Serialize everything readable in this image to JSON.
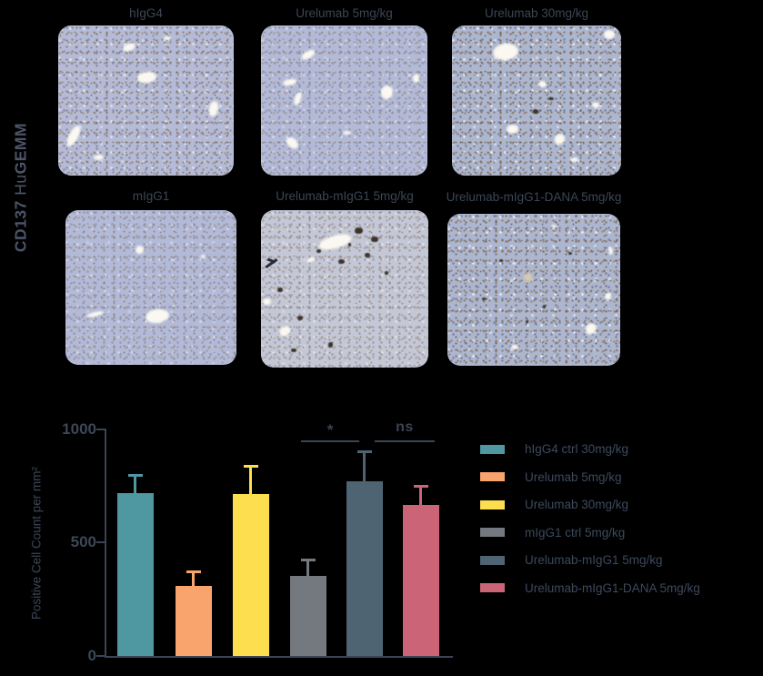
{
  "side_label": {
    "part1": "CD137",
    "part2": " Hu",
    "part3": "GEMM"
  },
  "panels": [
    {
      "label": "hIgG4"
    },
    {
      "label": "Urelumab 5mg/kg"
    },
    {
      "label": "Urelumab 30mg/kg"
    },
    {
      "label": "mIgG1"
    },
    {
      "label": "Urelumab-mIgG1 5mg/kg"
    },
    {
      "label": "Urelumab-mIgG1-DANA 5mg/kg"
    }
  ],
  "chart_data": {
    "type": "bar",
    "title": "",
    "xlabel": "",
    "ylabel": "Positive Cell Count per mm²",
    "ylim": [
      0,
      1000
    ],
    "yticks": [
      0,
      500,
      1000
    ],
    "grid": false,
    "legend_position": "right",
    "categories": [
      "hIgG4 ctrl 30mg/kg",
      "Urelumab 5mg/kg",
      "Urelumab 30mg/kg",
      "mIgG1 ctrl 5mg/kg",
      "Urelumab-mIgG1 5mg/kg",
      "Urelumab-mIgG1-DANA 5mg/kg"
    ],
    "values": [
      720,
      310,
      715,
      355,
      770,
      665
    ],
    "errors": [
      80,
      65,
      125,
      70,
      135,
      85
    ],
    "colors": [
      "#4F97A1",
      "#F9A46C",
      "#FDDE4F",
      "#74787F",
      "#4E6473",
      "#CC6478"
    ],
    "annotations": [
      {
        "label": "*",
        "from_index": 3,
        "to_index": 4
      },
      {
        "label": "ns",
        "from_index": 4,
        "to_index": 5
      }
    ]
  }
}
